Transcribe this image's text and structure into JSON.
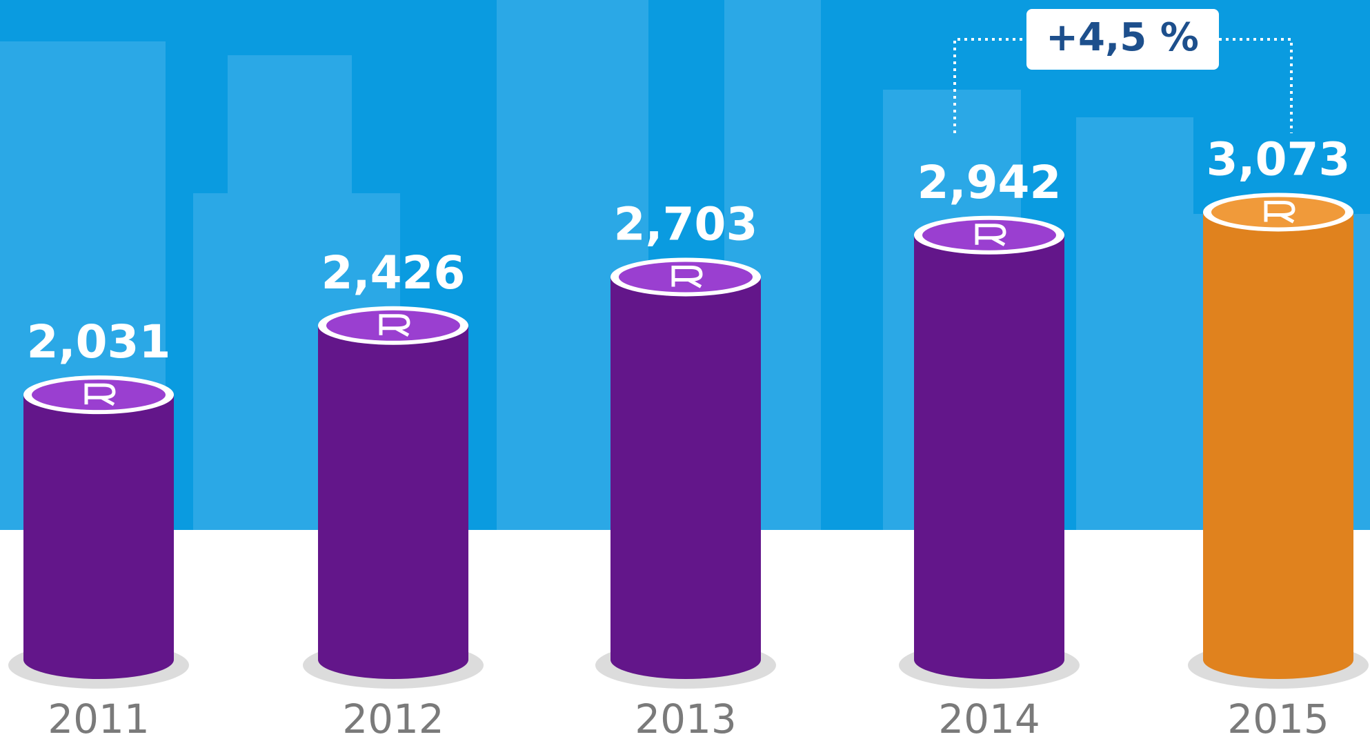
{
  "chart_data": {
    "type": "bar",
    "categories": [
      "2011",
      "2012",
      "2013",
      "2014",
      "2015"
    ],
    "values": [
      2.031,
      2.426,
      2.703,
      2.942,
      3.073
    ],
    "value_labels": [
      "2,031",
      "2,426",
      "2,703",
      "2,942",
      "3,073"
    ],
    "colors": [
      "#63168a",
      "#63168a",
      "#63168a",
      "#63168a",
      "#e0821e"
    ],
    "annotation": "+4,5 %"
  }
}
